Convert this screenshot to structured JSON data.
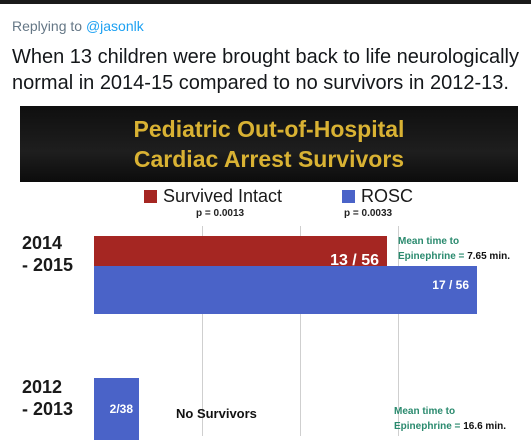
{
  "reply": {
    "prefix": "Replying to",
    "handle": "@jasonlk"
  },
  "tweet": {
    "text": "When 13 children were brought back to life neurologically normal in 2014-15 compared to no survivors in 2012-13."
  },
  "slide": {
    "title_line1": "Pediatric Out-of-Hospital",
    "title_line2": "Cardiac Arrest Survivors",
    "legend": [
      {
        "label": "Survived Intact",
        "p": "p = 0.0013",
        "color": "#a52622"
      },
      {
        "label": "ROSC",
        "p": "p = 0.0033",
        "color": "#4a63c8"
      }
    ],
    "group_2014": {
      "label_line1": "2014",
      "label_line2": "- 2015"
    },
    "group_2012": {
      "label_line1": "2012",
      "label_line2": "- 2013"
    },
    "no_survivors": "No Survivors",
    "note_2014": {
      "line1": "Mean time to",
      "prefix": "Epinephrine = ",
      "value": "7.65 min."
    },
    "note_2012": {
      "line1": "Mean time to",
      "prefix": "Epinephrine = ",
      "value": "16.6 min."
    }
  },
  "chart_data": {
    "type": "bar",
    "categories": [
      "2014 - 2015",
      "2012 - 2013"
    ],
    "series": [
      {
        "name": "Survived Intact",
        "values": [
          13,
          0
        ],
        "labels": [
          "13 / 56",
          ""
        ],
        "color": "#a52622"
      },
      {
        "name": "ROSC",
        "values": [
          17,
          2
        ],
        "labels": [
          "17 / 56",
          "2/38"
        ],
        "color": "#4a63c8"
      }
    ]
  }
}
